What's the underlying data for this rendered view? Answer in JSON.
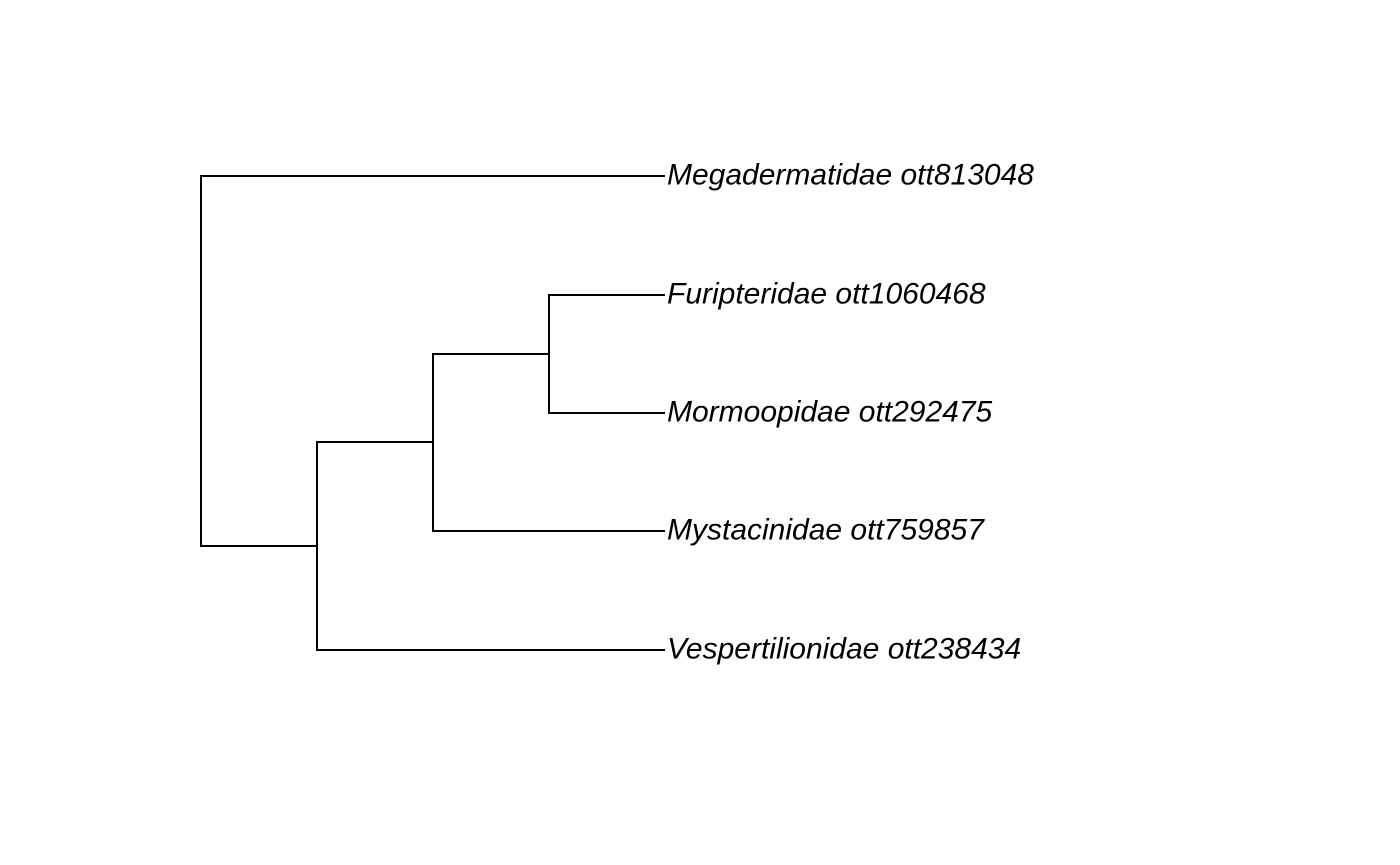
{
  "colors": {
    "background": "#ffffff",
    "branch": "#000000",
    "label": "#000000"
  },
  "tree": {
    "tips": [
      {
        "id": "t1",
        "label": "Megadermatidae ott813048"
      },
      {
        "id": "t2",
        "label": "Furipteridae ott1060468"
      },
      {
        "id": "t3",
        "label": "Mormoopidae ott292475"
      },
      {
        "id": "t4",
        "label": "Mystacinidae ott759857"
      },
      {
        "id": "t5",
        "label": "Vespertilionidae ott238434"
      }
    ],
    "newick": "(Megadermatidae_ott813048,(((Furipteridae_ott1060468,Mormoopidae_ott292475),Mystacinidae_ott759857),Vespertilionidae_ott238434));"
  }
}
